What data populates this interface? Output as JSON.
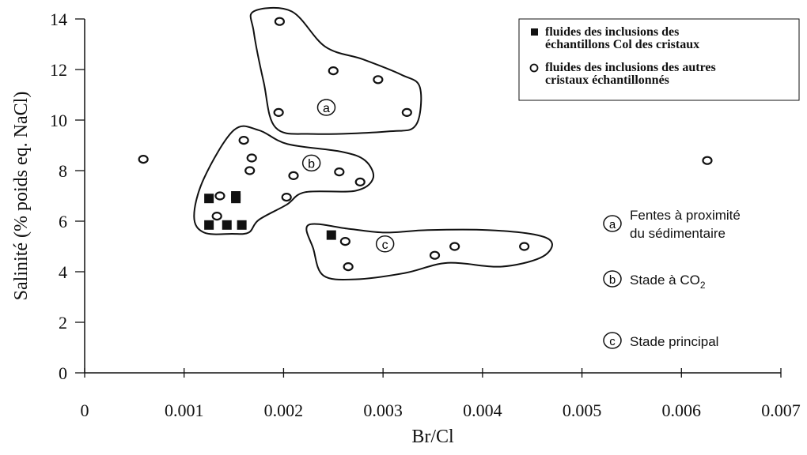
{
  "chart_data": {
    "type": "scatter",
    "xlabel": "Br/Cl",
    "ylabel": "Salinité (% poids eq. NaCl)",
    "xlim": [
      0,
      0.007
    ],
    "ylim": [
      0,
      14
    ],
    "x_ticks": [
      0,
      0.001,
      0.002,
      0.003,
      0.004,
      0.005,
      0.006,
      0.007
    ],
    "x_tick_labels": [
      "0",
      "0.001",
      "0.002",
      "0.003",
      "0.004",
      "0.005",
      "0.006",
      "0.007"
    ],
    "y_ticks": [
      0,
      2,
      4,
      6,
      8,
      10,
      12,
      14
    ],
    "y_tick_labels": [
      "0",
      "2",
      "4",
      "6",
      "8",
      "10",
      "12",
      "14"
    ],
    "grid": false,
    "legend_position": "top-right",
    "series": [
      {
        "name": "fluides des inclusions des échantillons Col des cristaux",
        "marker": "filled-square",
        "color": "#111111",
        "points": [
          {
            "x": 0.00125,
            "y": 6.9
          },
          {
            "x": 0.00152,
            "y": 7.0
          },
          {
            "x": 0.00152,
            "y": 6.9
          },
          {
            "x": 0.00125,
            "y": 5.85
          },
          {
            "x": 0.00143,
            "y": 5.85
          },
          {
            "x": 0.00158,
            "y": 5.85
          },
          {
            "x": 0.00248,
            "y": 5.45
          }
        ]
      },
      {
        "name": "fluides des inclusions des autres cristaux échantillonnés",
        "marker": "open-circle",
        "color": "#111111",
        "points": [
          {
            "x": 0.00196,
            "y": 13.9
          },
          {
            "x": 0.0025,
            "y": 11.95
          },
          {
            "x": 0.00295,
            "y": 11.6
          },
          {
            "x": 0.00195,
            "y": 10.3
          },
          {
            "x": 0.00324,
            "y": 10.3
          },
          {
            "x": 0.0016,
            "y": 9.2
          },
          {
            "x": 0.00168,
            "y": 8.5
          },
          {
            "x": 0.00166,
            "y": 8.0
          },
          {
            "x": 0.0021,
            "y": 7.8
          },
          {
            "x": 0.00256,
            "y": 7.95
          },
          {
            "x": 0.00277,
            "y": 7.55
          },
          {
            "x": 0.00136,
            "y": 7.0
          },
          {
            "x": 0.00203,
            "y": 6.95
          },
          {
            "x": 0.00133,
            "y": 6.2
          },
          {
            "x": 0.00059,
            "y": 8.45
          },
          {
            "x": 0.00262,
            "y": 5.2
          },
          {
            "x": 0.00265,
            "y": 4.2
          },
          {
            "x": 0.00352,
            "y": 4.65
          },
          {
            "x": 0.00372,
            "y": 5.0
          },
          {
            "x": 0.00442,
            "y": 5.0
          },
          {
            "x": 0.00626,
            "y": 8.4
          }
        ]
      }
    ],
    "groups": [
      {
        "label": "a",
        "x": 0.00243,
        "y": 10.5,
        "description": "Fentes à proximité du sédimentaire"
      },
      {
        "label": "b",
        "x": 0.00228,
        "y": 8.3,
        "description": "Stade à CO2"
      },
      {
        "label": "c",
        "x": 0.00302,
        "y": 5.1,
        "description": "Stade principal"
      }
    ],
    "regions": [
      {
        "label": "a",
        "polygon": [
          [
            0.0017,
            14.3
          ],
          [
            0.00208,
            14.3
          ],
          [
            0.00242,
            12.9
          ],
          [
            0.0028,
            12.4
          ],
          [
            0.00318,
            11.8
          ],
          [
            0.00337,
            11.3
          ],
          [
            0.00333,
            9.8
          ],
          [
            0.00305,
            9.55
          ],
          [
            0.0023,
            9.45
          ],
          [
            0.00192,
            9.7
          ],
          [
            0.0018,
            11.5
          ],
          [
            0.0017,
            13.5
          ]
        ]
      },
      {
        "label": "b",
        "polygon": [
          [
            0.0015,
            9.6
          ],
          [
            0.00175,
            9.6
          ],
          [
            0.00204,
            9.05
          ],
          [
            0.00258,
            8.75
          ],
          [
            0.00282,
            8.4
          ],
          [
            0.0029,
            7.7
          ],
          [
            0.00272,
            7.2
          ],
          [
            0.00222,
            7.15
          ],
          [
            0.00203,
            6.65
          ],
          [
            0.00175,
            6.05
          ],
          [
            0.00165,
            5.55
          ],
          [
            0.00148,
            5.5
          ],
          [
            0.0012,
            5.55
          ],
          [
            0.0011,
            6.2
          ],
          [
            0.0012,
            7.7
          ]
        ]
      },
      {
        "label": "c",
        "polygon": [
          [
            0.00225,
            5.85
          ],
          [
            0.00265,
            5.7
          ],
          [
            0.00302,
            5.55
          ],
          [
            0.00345,
            5.65
          ],
          [
            0.00405,
            5.65
          ],
          [
            0.00455,
            5.45
          ],
          [
            0.0047,
            5.1
          ],
          [
            0.00458,
            4.55
          ],
          [
            0.00418,
            4.2
          ],
          [
            0.00365,
            4.35
          ],
          [
            0.00322,
            3.95
          ],
          [
            0.00272,
            3.7
          ],
          [
            0.0024,
            3.85
          ],
          [
            0.0023,
            4.9
          ]
        ]
      }
    ]
  },
  "legend": {
    "items": [
      {
        "marker": "filled-square",
        "lines": [
          "fluides des inclusions des",
          "échantillons Col des cristaux"
        ]
      },
      {
        "marker": "open-circle",
        "lines": [
          "fluides des inclusions des autres",
          "cristaux échantillonnés"
        ]
      }
    ]
  },
  "group_legend": {
    "items": [
      {
        "label": "a",
        "lines": [
          "Fentes à proximité",
          "du sédimentaire"
        ]
      },
      {
        "label": "b",
        "text": "Stade à CO",
        "subscript": "2"
      },
      {
        "label": "c",
        "lines": [
          "Stade principal"
        ]
      }
    ]
  }
}
